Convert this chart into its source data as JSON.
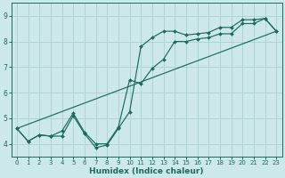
{
  "xlabel": "Humidex (Indice chaleur)",
  "bg_color": "#cce8e8",
  "line_color": "#1a6b5a",
  "grid_color": "#b0d4d0",
  "xlim": [
    -0.5,
    23.5
  ],
  "ylim": [
    3.5,
    9.5
  ],
  "xticks": [
    0,
    1,
    2,
    3,
    4,
    5,
    6,
    7,
    8,
    9,
    10,
    11,
    12,
    13,
    14,
    15,
    16,
    17,
    18,
    19,
    20,
    21,
    22,
    23
  ],
  "yticks": [
    4,
    5,
    6,
    7,
    8,
    9
  ],
  "line1_x": [
    0,
    1,
    2,
    3,
    4,
    5,
    6,
    7,
    8,
    9,
    10,
    11,
    12,
    13,
    14,
    15,
    16,
    17,
    18,
    19,
    20,
    21,
    22,
    23
  ],
  "line1_y": [
    4.6,
    4.1,
    4.35,
    4.3,
    4.3,
    5.1,
    4.4,
    3.85,
    3.95,
    4.6,
    5.25,
    7.8,
    8.15,
    8.4,
    8.4,
    8.25,
    8.3,
    8.35,
    8.55,
    8.55,
    8.85,
    8.85,
    8.9,
    8.4
  ],
  "line2_x": [
    0,
    1,
    2,
    3,
    4,
    5,
    6,
    7,
    8,
    9,
    10,
    11,
    12,
    13,
    14,
    15,
    16,
    17,
    18,
    19,
    20,
    21,
    22,
    23
  ],
  "line2_y": [
    4.6,
    4.1,
    4.35,
    4.3,
    4.5,
    5.2,
    4.45,
    4.0,
    4.0,
    4.65,
    6.5,
    6.35,
    6.95,
    7.3,
    8.0,
    8.0,
    8.1,
    8.15,
    8.3,
    8.3,
    8.7,
    8.7,
    8.9,
    8.4
  ],
  "line3_x": [
    0,
    23
  ],
  "line3_y": [
    4.6,
    8.4
  ]
}
